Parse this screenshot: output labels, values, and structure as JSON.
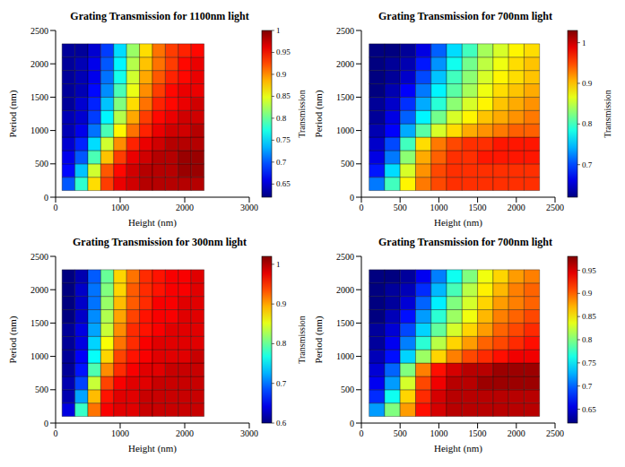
{
  "chart_data": [
    {
      "type": "heatmap",
      "title": "Grating Transmission for 1100nm light",
      "x_label": "Height (nm)",
      "y_label": "Period (nm)",
      "x": [
        200,
        400,
        600,
        800,
        1000,
        1200,
        1400,
        1600,
        1800,
        2000,
        2200
      ],
      "y": [
        200,
        400,
        600,
        800,
        1000,
        1200,
        1400,
        1600,
        1800,
        2000,
        2200
      ],
      "values": [
        [
          0.7,
          0.78,
          0.87,
          0.93,
          0.96,
          0.97,
          0.98,
          0.98,
          0.98,
          0.98,
          0.98
        ],
        [
          0.67,
          0.74,
          0.84,
          0.92,
          0.95,
          0.97,
          0.98,
          0.98,
          0.98,
          0.99,
          0.99
        ],
        [
          0.66,
          0.7,
          0.79,
          0.88,
          0.93,
          0.96,
          0.97,
          0.98,
          0.98,
          0.99,
          0.99
        ],
        [
          0.65,
          0.68,
          0.75,
          0.84,
          0.9,
          0.94,
          0.96,
          0.97,
          0.98,
          0.98,
          0.98
        ],
        [
          0.64,
          0.66,
          0.71,
          0.79,
          0.86,
          0.91,
          0.94,
          0.96,
          0.97,
          0.97,
          0.98
        ],
        [
          0.64,
          0.65,
          0.69,
          0.76,
          0.83,
          0.89,
          0.93,
          0.95,
          0.96,
          0.97,
          0.97
        ],
        [
          0.63,
          0.65,
          0.68,
          0.74,
          0.81,
          0.87,
          0.91,
          0.94,
          0.95,
          0.96,
          0.97
        ],
        [
          0.63,
          0.64,
          0.67,
          0.72,
          0.79,
          0.85,
          0.9,
          0.93,
          0.95,
          0.96,
          0.96
        ],
        [
          0.63,
          0.64,
          0.66,
          0.71,
          0.77,
          0.84,
          0.89,
          0.92,
          0.94,
          0.95,
          0.96
        ],
        [
          0.63,
          0.64,
          0.66,
          0.7,
          0.76,
          0.83,
          0.88,
          0.91,
          0.93,
          0.95,
          0.96
        ],
        [
          0.63,
          0.63,
          0.65,
          0.69,
          0.75,
          0.82,
          0.87,
          0.91,
          0.93,
          0.94,
          0.95
        ]
      ],
      "xlim": [
        0,
        3000
      ],
      "xticks": [
        0,
        1000,
        2000,
        3000
      ],
      "ylim": [
        0,
        2500
      ],
      "yticks": [
        0,
        500,
        1000,
        1500,
        2000,
        2500
      ],
      "colorbar": {
        "label": "Transmission",
        "range": [
          0.62,
          1.0
        ],
        "ticks": [
          0.65,
          0.7,
          0.75,
          0.8,
          0.85,
          0.9,
          0.95,
          1
        ]
      }
    },
    {
      "type": "heatmap",
      "title": "Grating Transmission for 700nm light",
      "x_label": "Height (nm)",
      "y_label": "Period (nm)",
      "x": [
        200,
        400,
        600,
        800,
        1000,
        1200,
        1400,
        1600,
        1800,
        2000,
        2200
      ],
      "y": [
        200,
        400,
        600,
        800,
        1000,
        1200,
        1400,
        1600,
        1800,
        2000,
        2200
      ],
      "values": [
        [
          0.72,
          0.8,
          0.88,
          0.93,
          0.95,
          0.96,
          0.96,
          0.96,
          0.96,
          0.96,
          0.96
        ],
        [
          0.68,
          0.76,
          0.86,
          0.92,
          0.95,
          0.96,
          0.96,
          0.96,
          0.96,
          0.96,
          0.96
        ],
        [
          0.66,
          0.72,
          0.83,
          0.91,
          0.94,
          0.96,
          0.96,
          0.97,
          0.97,
          0.97,
          0.97
        ],
        [
          0.65,
          0.7,
          0.8,
          0.89,
          0.93,
          0.95,
          0.96,
          0.96,
          0.97,
          0.97,
          0.97
        ],
        [
          0.64,
          0.67,
          0.74,
          0.81,
          0.86,
          0.89,
          0.91,
          0.92,
          0.93,
          0.94,
          0.94
        ],
        [
          0.63,
          0.66,
          0.71,
          0.77,
          0.82,
          0.86,
          0.88,
          0.9,
          0.91,
          0.92,
          0.93
        ],
        [
          0.63,
          0.65,
          0.69,
          0.74,
          0.79,
          0.83,
          0.86,
          0.88,
          0.9,
          0.91,
          0.92
        ],
        [
          0.62,
          0.64,
          0.67,
          0.72,
          0.77,
          0.81,
          0.84,
          0.87,
          0.89,
          0.9,
          0.91
        ],
        [
          0.62,
          0.63,
          0.65,
          0.7,
          0.75,
          0.8,
          0.83,
          0.86,
          0.88,
          0.89,
          0.9
        ],
        [
          0.62,
          0.63,
          0.64,
          0.68,
          0.73,
          0.78,
          0.82,
          0.85,
          0.87,
          0.89,
          0.9
        ],
        [
          0.62,
          0.62,
          0.63,
          0.66,
          0.71,
          0.76,
          0.8,
          0.84,
          0.86,
          0.88,
          0.89
        ]
      ],
      "xlim": [
        0,
        2500
      ],
      "xticks": [
        0,
        500,
        1000,
        1500,
        2000,
        2500
      ],
      "ylim": [
        0,
        2500
      ],
      "yticks": [
        0,
        500,
        1000,
        1500,
        2000,
        2500
      ],
      "colorbar": {
        "label": "Transmission",
        "range": [
          0.62,
          1.03
        ],
        "ticks": [
          0.7,
          0.8,
          0.9,
          1
        ]
      }
    },
    {
      "type": "heatmap",
      "title": "Grating Transmission for 300nm light",
      "x_label": "Height (nm)",
      "y_label": "Period (nm)",
      "x": [
        200,
        400,
        600,
        800,
        1000,
        1200,
        1400,
        1600,
        1800,
        2000,
        2200
      ],
      "y": [
        200,
        400,
        600,
        800,
        1000,
        1200,
        1400,
        1600,
        1800,
        2000,
        2200
      ],
      "values": [
        [
          0.64,
          0.78,
          0.92,
          0.97,
          0.98,
          0.98,
          0.99,
          0.99,
          0.99,
          0.99,
          0.99
        ],
        [
          0.62,
          0.72,
          0.89,
          0.96,
          0.98,
          0.98,
          0.99,
          0.99,
          0.99,
          0.99,
          0.99
        ],
        [
          0.62,
          0.68,
          0.84,
          0.94,
          0.97,
          0.98,
          0.98,
          0.99,
          0.99,
          0.99,
          0.99
        ],
        [
          0.61,
          0.66,
          0.79,
          0.91,
          0.95,
          0.97,
          0.98,
          0.98,
          0.99,
          0.99,
          0.99
        ],
        [
          0.61,
          0.65,
          0.76,
          0.88,
          0.94,
          0.96,
          0.97,
          0.98,
          0.98,
          0.98,
          0.99
        ],
        [
          0.61,
          0.64,
          0.74,
          0.86,
          0.92,
          0.95,
          0.97,
          0.98,
          0.98,
          0.98,
          0.98
        ],
        [
          0.61,
          0.64,
          0.72,
          0.84,
          0.91,
          0.95,
          0.96,
          0.97,
          0.98,
          0.98,
          0.98
        ],
        [
          0.6,
          0.63,
          0.71,
          0.83,
          0.9,
          0.94,
          0.96,
          0.97,
          0.97,
          0.98,
          0.98
        ],
        [
          0.6,
          0.63,
          0.7,
          0.82,
          0.89,
          0.93,
          0.95,
          0.97,
          0.97,
          0.98,
          0.98
        ],
        [
          0.6,
          0.63,
          0.7,
          0.81,
          0.88,
          0.93,
          0.95,
          0.96,
          0.97,
          0.97,
          0.98
        ],
        [
          0.6,
          0.62,
          0.69,
          0.8,
          0.88,
          0.92,
          0.95,
          0.96,
          0.97,
          0.97,
          0.98
        ]
      ],
      "xlim": [
        0,
        3000
      ],
      "xticks": [
        0,
        1000,
        2000,
        3000
      ],
      "ylim": [
        0,
        2500
      ],
      "yticks": [
        0,
        500,
        1000,
        1500,
        2000,
        2500
      ],
      "colorbar": {
        "label": "Transmission",
        "range": [
          0.6,
          1.02
        ],
        "ticks": [
          0.6,
          0.7,
          0.8,
          0.9,
          1
        ]
      }
    },
    {
      "type": "heatmap",
      "title": "Grating Transmission for 700nm light",
      "x_label": "Height (nm)",
      "y_label": "Period (nm)",
      "x": [
        200,
        400,
        600,
        800,
        1000,
        1200,
        1400,
        1600,
        1800,
        2000,
        2200
      ],
      "y": [
        200,
        400,
        600,
        800,
        1000,
        1200,
        1400,
        1600,
        1800,
        2000,
        2200
      ],
      "values": [
        [
          0.72,
          0.8,
          0.88,
          0.93,
          0.95,
          0.96,
          0.96,
          0.96,
          0.96,
          0.96,
          0.96
        ],
        [
          0.68,
          0.76,
          0.86,
          0.92,
          0.95,
          0.96,
          0.96,
          0.96,
          0.96,
          0.96,
          0.96
        ],
        [
          0.66,
          0.72,
          0.83,
          0.91,
          0.94,
          0.96,
          0.96,
          0.97,
          0.97,
          0.97,
          0.97
        ],
        [
          0.65,
          0.7,
          0.8,
          0.89,
          0.93,
          0.95,
          0.96,
          0.96,
          0.97,
          0.97,
          0.97
        ],
        [
          0.64,
          0.67,
          0.74,
          0.81,
          0.86,
          0.89,
          0.91,
          0.92,
          0.93,
          0.94,
          0.94
        ],
        [
          0.63,
          0.66,
          0.71,
          0.77,
          0.82,
          0.86,
          0.88,
          0.9,
          0.91,
          0.92,
          0.93
        ],
        [
          0.63,
          0.65,
          0.69,
          0.74,
          0.79,
          0.83,
          0.86,
          0.88,
          0.9,
          0.91,
          0.92
        ],
        [
          0.62,
          0.64,
          0.67,
          0.72,
          0.77,
          0.81,
          0.84,
          0.87,
          0.89,
          0.9,
          0.91
        ],
        [
          0.62,
          0.63,
          0.65,
          0.7,
          0.75,
          0.8,
          0.83,
          0.86,
          0.88,
          0.89,
          0.9
        ],
        [
          0.62,
          0.63,
          0.64,
          0.68,
          0.73,
          0.78,
          0.82,
          0.85,
          0.87,
          0.89,
          0.9
        ],
        [
          0.62,
          0.62,
          0.63,
          0.66,
          0.71,
          0.76,
          0.8,
          0.84,
          0.86,
          0.88,
          0.89
        ]
      ],
      "xlim": [
        0,
        2500
      ],
      "xticks": [
        0,
        500,
        1000,
        1500,
        2000,
        2500
      ],
      "ylim": [
        0,
        2500
      ],
      "yticks": [
        0,
        500,
        1000,
        1500,
        2000,
        2500
      ],
      "colorbar": {
        "range": [
          0.62,
          0.98
        ],
        "ticks": [
          0.65,
          0.7,
          0.75,
          0.8,
          0.85,
          0.9,
          0.95
        ]
      }
    }
  ]
}
